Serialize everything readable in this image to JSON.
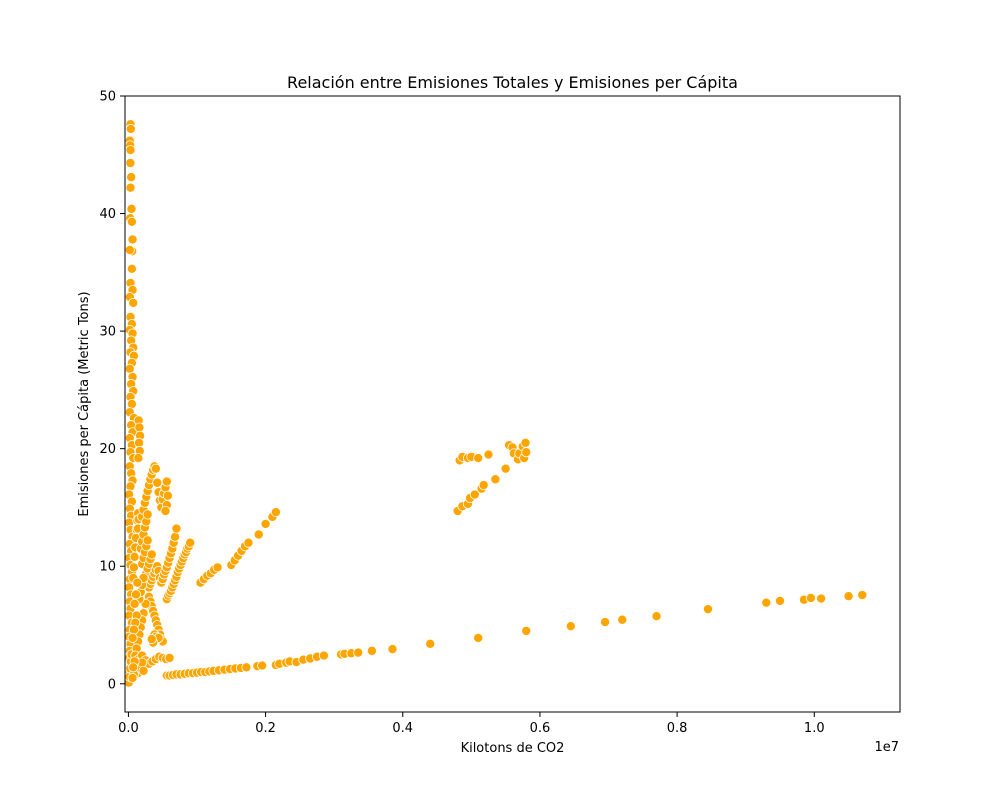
{
  "chart_data": {
    "type": "scatter",
    "title": "Relación entre Emisiones Totales y Emisiones per Cápita",
    "xlabel": "Kilotons de CO2",
    "ylabel": "Emisiones per Cápita (Metric Tons)",
    "x_offset_label": "1e7",
    "x_unit_scale": 10000000,
    "xlim": [
      -50000,
      11250000
    ],
    "ylim": [
      -2.4,
      50
    ],
    "x_ticks": [
      0,
      2000000,
      4000000,
      6000000,
      8000000,
      10000000
    ],
    "x_tick_labels": [
      "0.0",
      "0.2",
      "0.4",
      "0.6",
      "0.8",
      "1.0"
    ],
    "y_ticks": [
      0,
      10,
      20,
      30,
      40,
      50
    ],
    "y_tick_labels": [
      "0",
      "10",
      "20",
      "30",
      "40",
      "50"
    ],
    "grid": false,
    "marker_color": "#ffa500",
    "marker_edge": "#ffffff",
    "points": [
      [
        30000,
        47.6
      ],
      [
        35000,
        47.2
      ],
      [
        20000,
        46.2
      ],
      [
        25000,
        45.8
      ],
      [
        30000,
        45.4
      ],
      [
        28000,
        44.3
      ],
      [
        40000,
        43.1
      ],
      [
        30000,
        42.2
      ],
      [
        45000,
        40.4
      ],
      [
        25000,
        39.6
      ],
      [
        50000,
        39.3
      ],
      [
        60000,
        37.8
      ],
      [
        55000,
        36.8
      ],
      [
        20000,
        36.9
      ],
      [
        50000,
        35.3
      ],
      [
        30000,
        34.1
      ],
      [
        60000,
        33.5
      ],
      [
        20000,
        32.9
      ],
      [
        70000,
        32.4
      ],
      [
        30000,
        31.2
      ],
      [
        50000,
        30.6
      ],
      [
        20000,
        30.1
      ],
      [
        60000,
        29.8
      ],
      [
        40000,
        29.2
      ],
      [
        70000,
        28.6
      ],
      [
        30000,
        28.2
      ],
      [
        80000,
        27.9
      ],
      [
        50000,
        27.3
      ],
      [
        20000,
        26.8
      ],
      [
        60000,
        26.1
      ],
      [
        40000,
        25.5
      ],
      [
        70000,
        24.9
      ],
      [
        30000,
        24.4
      ],
      [
        50000,
        23.8
      ],
      [
        20000,
        23.1
      ],
      [
        80000,
        22.6
      ],
      [
        40000,
        22.0
      ],
      [
        60000,
        21.4
      ],
      [
        20000,
        20.9
      ],
      [
        50000,
        20.3
      ],
      [
        30000,
        19.7
      ],
      [
        70000,
        19.2
      ],
      [
        20000,
        18.5
      ],
      [
        40000,
        17.9
      ],
      [
        60000,
        17.3
      ],
      [
        30000,
        16.8
      ],
      [
        10000,
        16.1
      ],
      [
        50000,
        15.5
      ],
      [
        20000,
        14.9
      ],
      [
        40000,
        14.3
      ],
      [
        10000,
        13.7
      ],
      [
        30000,
        13.1
      ],
      [
        60000,
        12.5
      ],
      [
        20000,
        11.9
      ],
      [
        40000,
        11.3
      ],
      [
        10000,
        10.7
      ],
      [
        30000,
        10.1
      ],
      [
        50000,
        9.5
      ],
      [
        20000,
        8.9
      ],
      [
        10000,
        8.2
      ],
      [
        40000,
        7.6
      ],
      [
        20000,
        7.0
      ],
      [
        30000,
        6.4
      ],
      [
        10000,
        5.8
      ],
      [
        50000,
        5.2
      ],
      [
        20000,
        4.6
      ],
      [
        10000,
        4.0
      ],
      [
        30000,
        3.4
      ],
      [
        20000,
        2.8
      ],
      [
        10000,
        2.2
      ],
      [
        40000,
        1.6
      ],
      [
        20000,
        1.0
      ],
      [
        10000,
        0.4
      ],
      [
        5000,
        0.1
      ],
      [
        15000,
        0.6
      ],
      [
        25000,
        1.3
      ],
      [
        35000,
        1.9
      ],
      [
        45000,
        2.5
      ],
      [
        150000,
        22.4
      ],
      [
        160000,
        21.8
      ],
      [
        170000,
        21.1
      ],
      [
        155000,
        20.5
      ],
      [
        165000,
        19.8
      ],
      [
        145000,
        19.2
      ],
      [
        140000,
        14.5
      ],
      [
        130000,
        13.9
      ],
      [
        120000,
        13.1
      ],
      [
        110000,
        12.4
      ],
      [
        100000,
        11.6
      ],
      [
        90000,
        10.8
      ],
      [
        80000,
        9.9
      ],
      [
        70000,
        9.0
      ],
      [
        150000,
        14.0
      ],
      [
        140000,
        13.2
      ],
      [
        200000,
        14.2
      ],
      [
        220000,
        14.8
      ],
      [
        240000,
        15.4
      ],
      [
        260000,
        15.9
      ],
      [
        280000,
        16.4
      ],
      [
        300000,
        16.9
      ],
      [
        320000,
        17.4
      ],
      [
        340000,
        17.8
      ],
      [
        360000,
        18.2
      ],
      [
        380000,
        18.5
      ],
      [
        400000,
        18.3
      ],
      [
        420000,
        17.1
      ],
      [
        440000,
        16.3
      ],
      [
        460000,
        15.6
      ],
      [
        480000,
        15.0
      ],
      [
        500000,
        15.7
      ],
      [
        520000,
        16.2
      ],
      [
        540000,
        16.7
      ],
      [
        560000,
        17.2
      ],
      [
        575000,
        16.0
      ],
      [
        560000,
        15.2
      ],
      [
        540000,
        14.7
      ],
      [
        180000,
        11.5
      ],
      [
        200000,
        12.1
      ],
      [
        220000,
        12.7
      ],
      [
        240000,
        13.3
      ],
      [
        260000,
        13.8
      ],
      [
        280000,
        14.4
      ],
      [
        200000,
        10.2
      ],
      [
        220000,
        10.7
      ],
      [
        240000,
        11.2
      ],
      [
        260000,
        11.7
      ],
      [
        280000,
        12.2
      ],
      [
        240000,
        9.0
      ],
      [
        260000,
        9.4
      ],
      [
        280000,
        9.8
      ],
      [
        300000,
        10.2
      ],
      [
        320000,
        10.6
      ],
      [
        340000,
        11.0
      ],
      [
        300000,
        8.2
      ],
      [
        320000,
        8.5
      ],
      [
        340000,
        8.8
      ],
      [
        360000,
        9.1
      ],
      [
        380000,
        9.4
      ],
      [
        400000,
        9.7
      ],
      [
        420000,
        10.0
      ],
      [
        440000,
        9.6
      ],
      [
        460000,
        9.0
      ],
      [
        480000,
        8.6
      ],
      [
        500000,
        8.9
      ],
      [
        520000,
        9.3
      ],
      [
        540000,
        9.6
      ],
      [
        560000,
        9.9
      ],
      [
        580000,
        10.3
      ],
      [
        600000,
        10.7
      ],
      [
        620000,
        11.1
      ],
      [
        640000,
        11.5
      ],
      [
        660000,
        12.0
      ],
      [
        680000,
        12.5
      ],
      [
        700000,
        13.2
      ],
      [
        560000,
        7.2
      ],
      [
        580000,
        7.5
      ],
      [
        600000,
        7.7
      ],
      [
        620000,
        7.9
      ],
      [
        640000,
        8.2
      ],
      [
        660000,
        8.5
      ],
      [
        680000,
        8.8
      ],
      [
        700000,
        9.1
      ],
      [
        720000,
        9.5
      ],
      [
        740000,
        9.8
      ],
      [
        760000,
        10.1
      ],
      [
        780000,
        10.4
      ],
      [
        800000,
        10.7
      ],
      [
        820000,
        11.0
      ],
      [
        840000,
        11.2
      ],
      [
        860000,
        11.5
      ],
      [
        880000,
        11.7
      ],
      [
        900000,
        12.0
      ],
      [
        300000,
        7.4
      ],
      [
        320000,
        7.0
      ],
      [
        340000,
        6.6
      ],
      [
        360000,
        6.2
      ],
      [
        380000,
        5.8
      ],
      [
        400000,
        5.4
      ],
      [
        420000,
        5.0
      ],
      [
        440000,
        4.6
      ],
      [
        460000,
        4.2
      ],
      [
        480000,
        3.8
      ],
      [
        500000,
        3.6
      ],
      [
        250000,
        6.8
      ],
      [
        220000,
        6.0
      ],
      [
        200000,
        5.4
      ],
      [
        180000,
        4.8
      ],
      [
        160000,
        4.2
      ],
      [
        140000,
        3.6
      ],
      [
        120000,
        3.0
      ],
      [
        100000,
        2.4
      ],
      [
        160000,
        7.2
      ],
      [
        180000,
        7.8
      ],
      [
        200000,
        8.4
      ],
      [
        220000,
        9.0
      ],
      [
        120000,
        5.8
      ],
      [
        100000,
        5.2
      ],
      [
        80000,
        4.6
      ],
      [
        60000,
        3.9
      ],
      [
        130000,
        8.6
      ],
      [
        110000,
        7.6
      ],
      [
        90000,
        6.8
      ],
      [
        380000,
        4.2
      ],
      [
        400000,
        4.0
      ],
      [
        420000,
        3.8
      ],
      [
        440000,
        3.9
      ],
      [
        360000,
        3.5
      ],
      [
        340000,
        3.8
      ],
      [
        150000,
        2.1
      ],
      [
        200000,
        2.4
      ],
      [
        250000,
        2.0
      ],
      [
        300000,
        1.7
      ],
      [
        350000,
        1.9
      ],
      [
        400000,
        2.1
      ],
      [
        450000,
        2.3
      ],
      [
        500000,
        2.2
      ],
      [
        550000,
        2.1
      ],
      [
        600000,
        2.2
      ],
      [
        100000,
        1.5
      ],
      [
        120000,
        1.2
      ],
      [
        140000,
        0.9
      ],
      [
        160000,
        1.6
      ],
      [
        180000,
        1.3
      ],
      [
        200000,
        1.8
      ],
      [
        220000,
        1.1
      ],
      [
        80000,
        0.8
      ],
      [
        60000,
        0.5
      ],
      [
        90000,
        1.9
      ],
      [
        70000,
        1.4
      ],
      [
        1050000,
        8.6
      ],
      [
        1100000,
        8.9
      ],
      [
        1150000,
        9.2
      ],
      [
        1200000,
        9.4
      ],
      [
        1250000,
        9.7
      ],
      [
        1300000,
        9.9
      ],
      [
        1500000,
        10.1
      ],
      [
        1550000,
        10.5
      ],
      [
        1600000,
        10.9
      ],
      [
        1650000,
        11.3
      ],
      [
        1700000,
        11.7
      ],
      [
        1750000,
        12.0
      ],
      [
        1900000,
        12.7
      ],
      [
        2000000,
        13.6
      ],
      [
        2100000,
        14.2
      ],
      [
        2150000,
        14.6
      ],
      [
        560000,
        0.7
      ],
      [
        600000,
        0.7
      ],
      [
        650000,
        0.75
      ],
      [
        700000,
        0.8
      ],
      [
        760000,
        0.8
      ],
      [
        820000,
        0.85
      ],
      [
        880000,
        0.9
      ],
      [
        940000,
        0.9
      ],
      [
        1000000,
        0.95
      ],
      [
        1060000,
        1.0
      ],
      [
        1120000,
        1.0
      ],
      [
        1180000,
        1.05
      ],
      [
        1240000,
        1.1
      ],
      [
        1320000,
        1.15
      ],
      [
        1400000,
        1.2
      ],
      [
        1480000,
        1.25
      ],
      [
        1560000,
        1.3
      ],
      [
        1640000,
        1.35
      ],
      [
        1720000,
        1.4
      ],
      [
        1880000,
        1.5
      ],
      [
        1950000,
        1.55
      ],
      [
        2150000,
        1.6
      ],
      [
        2200000,
        1.7
      ],
      [
        2300000,
        1.8
      ],
      [
        2350000,
        1.9
      ],
      [
        2450000,
        1.85
      ],
      [
        2550000,
        2.05
      ],
      [
        2650000,
        2.15
      ],
      [
        2750000,
        2.3
      ],
      [
        2850000,
        2.4
      ],
      [
        3100000,
        2.5
      ],
      [
        3150000,
        2.55
      ],
      [
        3250000,
        2.6
      ],
      [
        3350000,
        2.65
      ],
      [
        3550000,
        2.8
      ],
      [
        3850000,
        2.95
      ],
      [
        4400000,
        3.4
      ],
      [
        5100000,
        3.9
      ],
      [
        5800000,
        4.5
      ],
      [
        6450000,
        4.9
      ],
      [
        6950000,
        5.25
      ],
      [
        7200000,
        5.45
      ],
      [
        7700000,
        5.75
      ],
      [
        8450000,
        6.35
      ],
      [
        9300000,
        6.9
      ],
      [
        9500000,
        7.05
      ],
      [
        9850000,
        7.15
      ],
      [
        9950000,
        7.3
      ],
      [
        10100000,
        7.25
      ],
      [
        10500000,
        7.45
      ],
      [
        10700000,
        7.55
      ],
      [
        4800000,
        14.7
      ],
      [
        4870000,
        15.1
      ],
      [
        4950000,
        15.3
      ],
      [
        4980000,
        15.8
      ],
      [
        5050000,
        16.1
      ],
      [
        5150000,
        16.6
      ],
      [
        5180000,
        16.9
      ],
      [
        5350000,
        17.4
      ],
      [
        5500000,
        18.3
      ],
      [
        4830000,
        19.0
      ],
      [
        4870000,
        19.3
      ],
      [
        4950000,
        19.2
      ],
      [
        5000000,
        19.3
      ],
      [
        5100000,
        19.2
      ],
      [
        5250000,
        19.5
      ],
      [
        5550000,
        20.3
      ],
      [
        5600000,
        20.1
      ],
      [
        5620000,
        19.6
      ],
      [
        5680000,
        19.1
      ],
      [
        5700000,
        19.6
      ],
      [
        5750000,
        20.2
      ],
      [
        5770000,
        19.2
      ],
      [
        5790000,
        20.5
      ],
      [
        5800000,
        19.7
      ]
    ]
  }
}
